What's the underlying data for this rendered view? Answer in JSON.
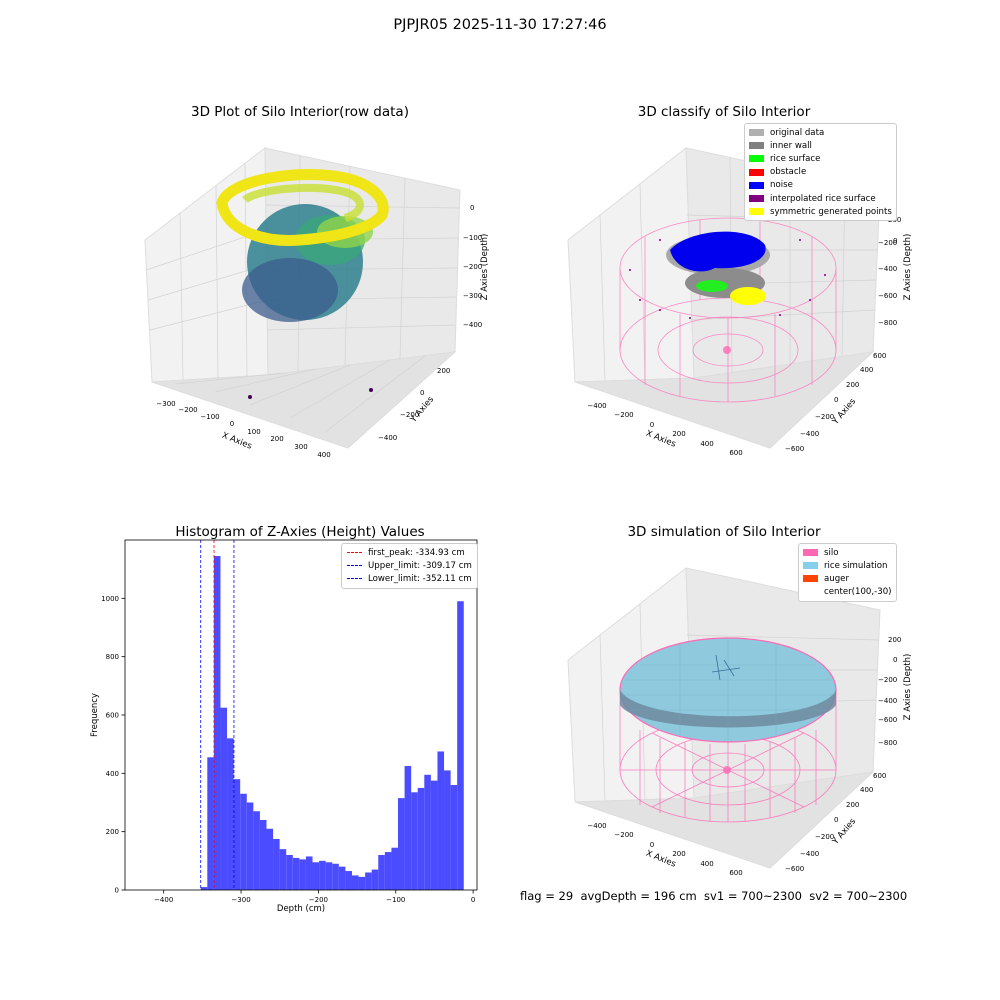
{
  "figure": {
    "title": "PJPJR05 2025-11-30 17:27:46",
    "footer": "flag = 29  avgDepth = 196 cm  sv1 = 700~2300  sv2 = 700~2300"
  },
  "colors": {
    "histogram_bar": "#4b4bff",
    "first_peak_line": "#ff0000",
    "limit_line": "#0000ff",
    "silo_wire": "#ff69b4",
    "rice_surface": "#87cefa",
    "pane_light": "#f2f2f2",
    "pane_dark": "#e6e6e6",
    "grid": "#d0d0d0"
  },
  "chart_data": [
    {
      "type": "scatter",
      "title": "3D Plot of Silo Interior(row data)",
      "projection": "3d",
      "xlabel": "X Axies",
      "ylabel": "Y Axies",
      "zlabel": "Z Axies (Depth)",
      "xticks": [
        "−300",
        "−200",
        "−100",
        "0",
        "100",
        "200",
        "300",
        "400"
      ],
      "yticks": [
        "−400",
        "−200",
        "0",
        "200"
      ],
      "zticks": [
        "−400",
        "−300",
        "−200",
        "−100",
        "0"
      ],
      "colormap": "viridis"
    },
    {
      "type": "scatter",
      "title": "3D classify of Silo Interior",
      "projection": "3d",
      "xlabel": "X Axies",
      "ylabel": "Y Axies",
      "zlabel": "Z Axies (Depth)",
      "xticks": [
        "−400",
        "−200",
        "0",
        "200",
        "400",
        "600"
      ],
      "yticks": [
        "−600",
        "−400",
        "−200",
        "0",
        "200",
        "400",
        "600"
      ],
      "zticks": [
        "−800",
        "−600",
        "−400",
        "−200",
        "0",
        "200"
      ],
      "legend_position": "top-right",
      "legend": [
        {
          "label": "original data",
          "color": "#b0b0b0"
        },
        {
          "label": "inner wall",
          "color": "#808080"
        },
        {
          "label": "rice surface",
          "color": "#00ff00"
        },
        {
          "label": "obstacle",
          "color": "#ff0000"
        },
        {
          "label": "noise",
          "color": "#0000ff"
        },
        {
          "label": "interpolated rice surface",
          "color": "#800080"
        },
        {
          "label": "symmetric generated points",
          "color": "#ffff00"
        }
      ]
    },
    {
      "type": "bar",
      "title": "Histogram of Z-Axies (Height) Values",
      "xlabel": "Depth (cm)",
      "ylabel": "Frequency",
      "xlim": [
        -450,
        5
      ],
      "ylim": [
        0,
        1200
      ],
      "xticks": [
        -400,
        -300,
        -200,
        -100,
        0
      ],
      "xtick_labels": [
        "−400",
        "−300",
        "−200",
        "−100",
        "0"
      ],
      "yticks": [
        0,
        200,
        400,
        600,
        800,
        1000
      ],
      "yticks_labels": [
        "0",
        "200",
        "400",
        "600",
        "800",
        "1000"
      ],
      "bin_width": 8.5,
      "bins_start": [
        -352.11,
        -343.61,
        -335.11,
        -326.61,
        -318.11,
        -309.61,
        -301.11,
        -292.61,
        -284.11,
        -275.61,
        -267.11,
        -258.61,
        -250.11,
        -241.61,
        -233.11,
        -224.61,
        -216.11,
        -207.61,
        -199.11,
        -190.61,
        -182.11,
        -173.61,
        -165.11,
        -156.61,
        -148.11,
        -139.61,
        -131.11,
        -122.61,
        -114.11,
        -105.61,
        -97.11,
        -88.61,
        -80.11,
        -71.61,
        -63.11,
        -54.61,
        -46.11,
        -37.61,
        -29.11,
        -20.61,
        -12.11,
        -3.61
      ],
      "values": [
        10,
        455,
        1145,
        625,
        520,
        380,
        330,
        300,
        270,
        240,
        210,
        175,
        140,
        120,
        110,
        105,
        115,
        95,
        100,
        95,
        90,
        80,
        65,
        50,
        45,
        60,
        70,
        120,
        130,
        145,
        315,
        425,
        335,
        350,
        395,
        375,
        475,
        410,
        360,
        990,
        0,
        0
      ],
      "vlines": [
        {
          "name": "first_peak: -334.93 cm",
          "x": -334.93,
          "color": "#ff0000"
        },
        {
          "name": "Upper_limit: -309.17 cm",
          "x": -309.17,
          "color": "#0000ff"
        },
        {
          "name": "Lower_limit: -352.11 cm",
          "x": -352.11,
          "color": "#0000ff"
        }
      ],
      "legend_position": "top-right"
    },
    {
      "type": "scatter",
      "title": "3D simulation of Silo Interior",
      "projection": "3d",
      "xlabel": "X Axies",
      "ylabel": "Y Axies",
      "zlabel": "Z Axies (Depth)",
      "xticks": [
        "−400",
        "−200",
        "0",
        "200",
        "400",
        "600"
      ],
      "yticks": [
        "−600",
        "−400",
        "−200",
        "0",
        "200",
        "400",
        "600"
      ],
      "zticks": [
        "−800",
        "−600",
        "−400",
        "−200",
        "0",
        "200"
      ],
      "legend_position": "top-right",
      "legend": [
        {
          "label": "silo",
          "color": "#ff69b4"
        },
        {
          "label": "rice simulation",
          "color": "#87ceeb"
        },
        {
          "label": "auger",
          "color": "#ff4500"
        },
        {
          "label": "center(100,-30)",
          "color": ""
        }
      ]
    }
  ]
}
